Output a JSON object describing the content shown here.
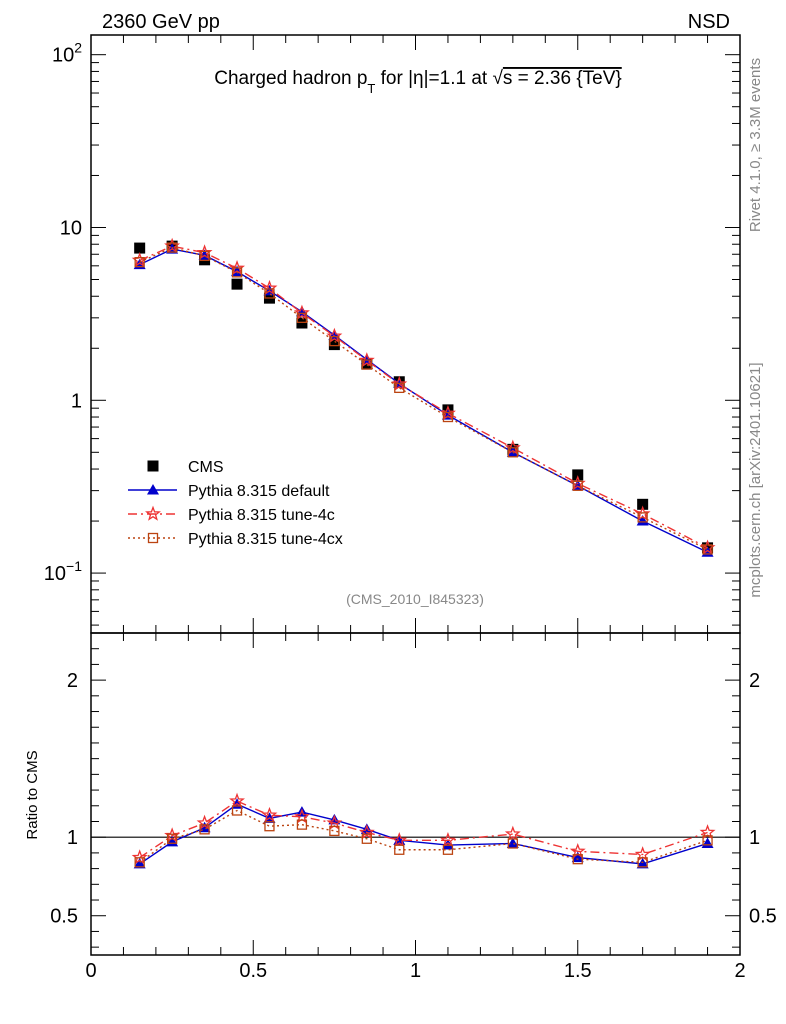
{
  "header": {
    "left": "2360 GeV pp",
    "right": "NSD"
  },
  "side_labels": {
    "rivet": "Rivet 4.1.0, ≥ 3.3M events",
    "mcplots": "mcplots.cern.ch [arXiv:2401.10621]"
  },
  "chart_data": [
    {
      "type": "scatter",
      "title": "Charged hadron p_T for |η|=1.1 at √s = 2.36 {TeV}",
      "title_parts": {
        "a": "Charged hadron p",
        "sub": "T",
        "b": " for |η|=1.1 at ",
        "root": "√",
        "c": "s = 2.36 {TeV}"
      },
      "reference": "(CMS_2010_I845323)",
      "xlabel": "",
      "ylabel": "",
      "yscale": "log",
      "xlim": [
        0,
        2
      ],
      "ylim": [
        0.045,
        130
      ],
      "x_ticks": [
        0,
        0.5,
        1,
        1.5,
        2
      ],
      "y_tick_labels": [
        {
          "value": 100,
          "base": "10",
          "exp": "2"
        },
        {
          "value": 10,
          "base": "10",
          "exp": ""
        },
        {
          "value": 1,
          "base": "1",
          "exp": ""
        },
        {
          "value": 0.1,
          "base": "10",
          "exp": "−1"
        }
      ],
      "legend_position": "bottom-left",
      "x": [
        0.15,
        0.25,
        0.35,
        0.45,
        0.55,
        0.65,
        0.75,
        0.85,
        0.95,
        1.1,
        1.3,
        1.5,
        1.7,
        1.9
      ],
      "series": [
        {
          "name": "CMS",
          "color": "#000000",
          "marker": "square",
          "line": "none",
          "values": [
            7.6,
            7.8,
            6.5,
            4.7,
            3.9,
            2.8,
            2.1,
            1.62,
            1.28,
            0.88,
            0.52,
            0.37,
            0.25,
            0.14
          ]
        },
        {
          "name": "Pythia 8.315 default",
          "color": "#0000cc",
          "marker": "triangle",
          "line": "solid",
          "values": [
            6.1,
            7.5,
            6.9,
            5.55,
            4.3,
            3.25,
            2.38,
            1.72,
            1.25,
            0.82,
            0.5,
            0.32,
            0.2,
            0.132
          ]
        },
        {
          "name": "Pythia 8.315 tune-4c",
          "color": "#ee3333",
          "marker": "star",
          "line": "dashdot",
          "values": [
            6.45,
            7.8,
            7.15,
            5.8,
            4.45,
            3.2,
            2.35,
            1.7,
            1.24,
            0.84,
            0.53,
            0.33,
            0.22,
            0.14
          ]
        },
        {
          "name": "Pythia 8.315 tune-4cx",
          "color": "#bb4411",
          "marker": "open-square",
          "line": "dotted",
          "values": [
            6.3,
            7.65,
            6.85,
            5.5,
            4.15,
            3.0,
            2.2,
            1.61,
            1.18,
            0.8,
            0.5,
            0.32,
            0.21,
            0.137
          ]
        }
      ]
    },
    {
      "type": "line",
      "title": "",
      "xlabel": "",
      "ylabel": "Ratio to CMS",
      "xlim": [
        0,
        2
      ],
      "ylim": [
        0.25,
        2.3
      ],
      "y_ticks": [
        0.5,
        1,
        2
      ],
      "y_tick_labels": [
        "0.5",
        "1",
        "2"
      ],
      "x_tick_labels": [
        "0",
        "0.5",
        "1",
        "1.5",
        "2"
      ],
      "reference_line": 1,
      "x": [
        0.15,
        0.25,
        0.35,
        0.45,
        0.55,
        0.65,
        0.75,
        0.85,
        0.95,
        1.1,
        1.3,
        1.5,
        1.7,
        1.9
      ],
      "series": [
        {
          "name": "Pythia 8.315 default",
          "color": "#0000cc",
          "marker": "triangle",
          "line": "solid",
          "values": [
            0.83,
            0.97,
            1.06,
            1.21,
            1.12,
            1.16,
            1.11,
            1.05,
            0.98,
            0.95,
            0.96,
            0.87,
            0.83,
            0.96
          ]
        },
        {
          "name": "Pythia 8.315 tune-4c",
          "color": "#ee3333",
          "marker": "star",
          "line": "dashdot",
          "values": [
            0.87,
            1.01,
            1.09,
            1.23,
            1.14,
            1.13,
            1.09,
            1.03,
            0.98,
            0.98,
            1.02,
            0.91,
            0.89,
            1.03
          ]
        },
        {
          "name": "Pythia 8.315 tune-4cx",
          "color": "#bb4411",
          "marker": "open-square",
          "line": "dotted",
          "values": [
            0.84,
            0.99,
            1.05,
            1.17,
            1.07,
            1.08,
            1.04,
            0.99,
            0.92,
            0.92,
            0.96,
            0.86,
            0.84,
            0.98
          ]
        }
      ]
    }
  ]
}
